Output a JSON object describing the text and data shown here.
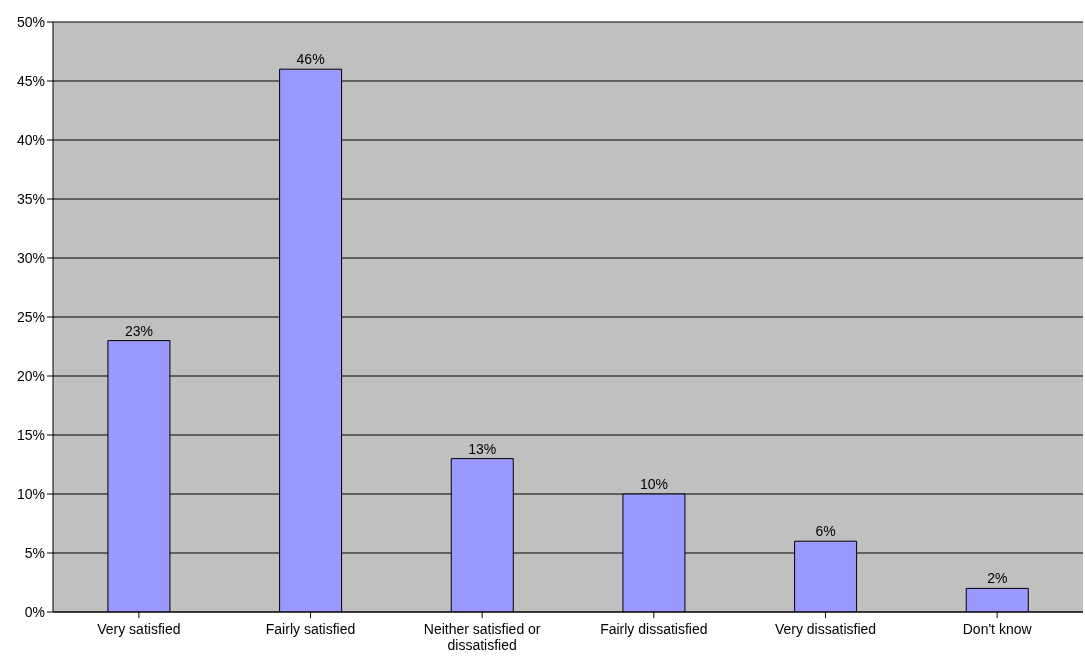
{
  "chart_data": {
    "type": "bar",
    "categories": [
      "Very satisfied",
      "Fairly satisfied",
      "Neither satisfied or dissatisfied",
      "Fairly dissatisfied",
      "Very dissatisfied",
      "Don't know"
    ],
    "values": [
      23,
      46,
      13,
      10,
      6,
      2
    ],
    "value_labels": [
      "23%",
      "46%",
      "13%",
      "10%",
      "6%",
      "2%"
    ],
    "color": "#9999ff",
    "ylim": [
      0,
      50
    ],
    "yticks": [
      {
        "value": 0,
        "label": "0%"
      },
      {
        "value": 5,
        "label": "5%"
      },
      {
        "value": 10,
        "label": "10%"
      },
      {
        "value": 15,
        "label": "15%"
      },
      {
        "value": 20,
        "label": "20%"
      },
      {
        "value": 25,
        "label": "25%"
      },
      {
        "value": 30,
        "label": "30%"
      },
      {
        "value": 35,
        "label": "35%"
      },
      {
        "value": 40,
        "label": "40%"
      },
      {
        "value": 45,
        "label": "45%"
      },
      {
        "value": 50,
        "label": "50%"
      }
    ],
    "grid": "y"
  }
}
